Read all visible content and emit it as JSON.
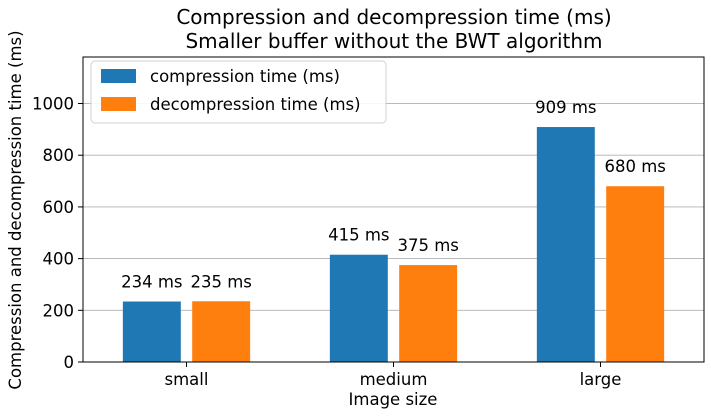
{
  "chart_data": {
    "type": "bar",
    "title_line1": "Compression and decompression time (ms)",
    "title_line2": "Smaller buffer without the BWT algorithm",
    "xlabel": "Image size",
    "ylabel": "Compression and decompression time (ms)",
    "categories": [
      "small",
      "medium",
      "large"
    ],
    "series": [
      {
        "name": "compression time (ms)",
        "color": "#1f77b4",
        "values": [
          234,
          415,
          909
        ],
        "labels": [
          "234 ms",
          "415 ms",
          "909 ms"
        ]
      },
      {
        "name": "decompression time (ms)",
        "color": "#ff7f0e",
        "values": [
          235,
          375,
          680
        ],
        "labels": [
          "235 ms",
          "375 ms",
          "680 ms"
        ]
      }
    ],
    "ylim": [
      0,
      1180
    ],
    "yticks": [
      0,
      200,
      400,
      600,
      800,
      1000
    ],
    "ytick_labels": [
      "0",
      "200",
      "400",
      "600",
      "800",
      "1000"
    ],
    "grid": "y",
    "legend_placement": "top-left"
  }
}
